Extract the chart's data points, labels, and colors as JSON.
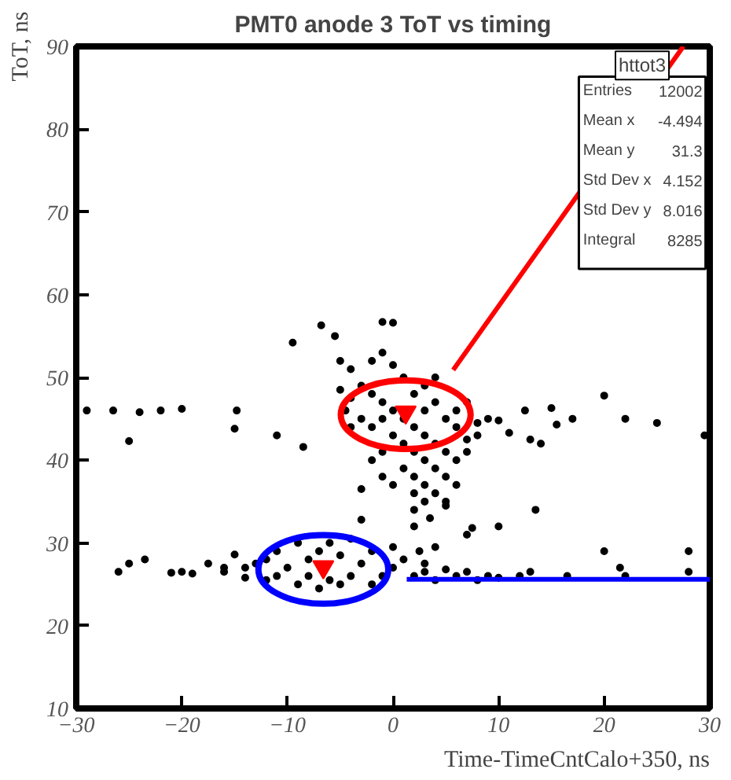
{
  "chart_data": {
    "type": "scatter",
    "title": "PMT0 anode 3 ToT vs timing",
    "xlabel": "Time-TimeCntCalo+350, ns",
    "ylabel": "ToT, ns",
    "xlim": [
      -30,
      30
    ],
    "ylim": [
      10,
      90
    ],
    "xticks": [
      -30,
      -20,
      -10,
      0,
      10,
      20,
      30
    ],
    "yticks": [
      10,
      20,
      30,
      40,
      50,
      60,
      70,
      80,
      90
    ],
    "grid": false,
    "annotations": [
      "httot3",
      "Entries 12002",
      "Mean x -4.494",
      "Mean y 31.3",
      "Std Dev x 4.152",
      "Std Dev y 8.016",
      "Integral 8285"
    ],
    "series": [
      {
        "color": "#000000",
        "marker": "circle",
        "x": [
          -29,
          -26.5,
          -25,
          -24,
          -22,
          -20,
          -15,
          -14.8,
          -11,
          -8.5,
          -5,
          -4.5,
          -4,
          12.5,
          13,
          14,
          15,
          15.5,
          17,
          20,
          22,
          25,
          29.5,
          -9.5,
          -6.8,
          -5.5,
          -5,
          -1,
          0,
          -1,
          -4,
          -2,
          0,
          1,
          -3,
          -2,
          -1,
          0,
          1,
          2,
          3,
          4,
          5,
          6,
          -3,
          -2,
          0,
          1,
          2,
          3,
          4,
          1,
          2,
          3,
          2,
          3,
          4,
          5,
          6,
          7,
          8,
          9,
          -2,
          -1,
          0,
          -3,
          6,
          5,
          2,
          7,
          8,
          10,
          11,
          -1,
          4,
          5,
          6,
          7,
          -4,
          3,
          -1,
          2,
          3,
          4,
          -3,
          2,
          3.5,
          7,
          7.5,
          10,
          13.5,
          5,
          -26,
          -25,
          -23.5,
          -21,
          -20,
          -19,
          -17.5,
          -16,
          -15,
          -14,
          -13,
          -12,
          -11,
          -10,
          -9,
          -8,
          -7,
          -6,
          -5,
          -4,
          -3,
          -2,
          -1,
          0,
          -9,
          -11,
          -12,
          -4,
          -6,
          1,
          0,
          2,
          3,
          4,
          5,
          6,
          7,
          8,
          9,
          10,
          12,
          13,
          16.5,
          20,
          21.5,
          22,
          28,
          28,
          -14,
          -16,
          -8,
          -7,
          -5,
          -2,
          2.5,
          3,
          4
        ],
        "values": [
          46,
          46,
          42.3,
          45.8,
          46,
          46.2,
          43.8,
          46,
          43,
          41.6,
          48.5,
          46,
          44,
          46,
          42.5,
          42,
          46.3,
          44.3,
          45,
          47.8,
          45,
          44.5,
          43,
          54.2,
          56.3,
          55,
          52,
          56.7,
          56.6,
          53,
          51,
          52,
          51.5,
          50,
          49,
          48,
          47,
          46,
          45,
          44,
          43,
          47,
          45,
          44,
          45,
          44,
          43,
          42,
          41,
          40,
          39,
          39,
          38,
          37,
          36,
          35,
          36,
          38,
          40,
          41,
          43,
          45,
          40,
          38,
          37,
          36.5,
          37,
          35,
          34,
          42.5,
          44.5,
          44.8,
          43.3,
          41,
          42,
          41,
          46,
          47,
          47.5,
          46,
          45,
          48,
          49,
          50,
          32.8,
          32,
          33,
          31,
          31.8,
          32,
          34,
          34.5,
          26.5,
          27.5,
          28,
          26.4,
          26.5,
          26.3,
          27.5,
          26.5,
          28.6,
          27,
          27.5,
          28,
          29,
          27,
          30,
          26,
          29,
          25.5,
          28.5,
          26,
          27.5,
          29,
          26,
          27,
          25,
          26,
          25.5,
          30.5,
          30,
          28,
          29.5,
          26,
          26.5,
          25.5,
          26.8,
          26,
          26.5,
          25.5,
          26,
          25.8,
          26,
          26.5,
          26,
          29,
          27,
          26,
          29,
          26.5,
          25.8,
          27,
          28,
          24.5,
          25,
          25,
          29,
          27.5,
          29.5
        ]
      },
      {
        "color": "#ff0000",
        "marker": "triangle",
        "x": [
          1.2,
          -6.6
        ],
        "values": [
          45.8,
          27.1
        ]
      },
      {
        "type": "line",
        "color": "#ff0000",
        "marker": "none",
        "line_style": "solid",
        "x": [
          5.7,
          27.5
        ],
        "values": [
          50.9,
          90
        ]
      },
      {
        "type": "line",
        "color": "#0000ff",
        "marker": "none",
        "line_style": "solid",
        "x": [
          1.3,
          30
        ],
        "values": [
          25.6,
          25.6
        ]
      }
    ]
  }
}
